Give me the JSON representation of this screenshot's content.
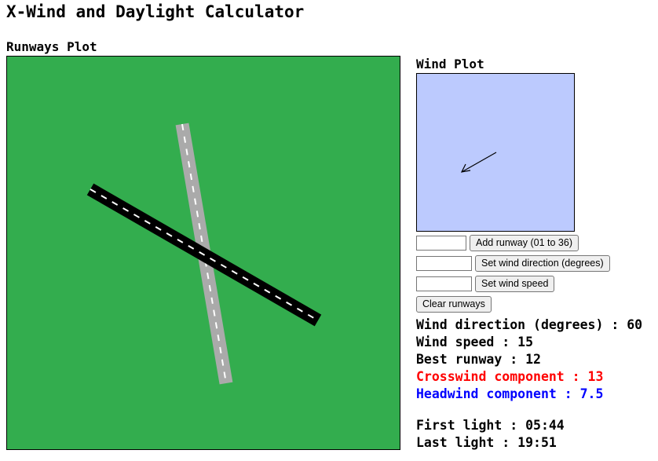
{
  "page": {
    "title": "X-Wind and Daylight Calculator"
  },
  "runways_plot": {
    "title": "Runways Plot",
    "background_color": "#33ad4e",
    "runways": [
      {
        "label": "12",
        "heading_deg": 120,
        "surface_color": "#000000",
        "centerline_color": "#ffffff"
      },
      {
        "label": "01 to 36 (near N-S, ~010/190)",
        "heading_deg": 10,
        "surface_color": "#aaaaaa",
        "centerline_color": "#ffffff"
      }
    ]
  },
  "wind_plot": {
    "title": "Wind Plot",
    "background_color": "#bccafe",
    "arrow_color": "#000000",
    "wind_direction_deg": 60
  },
  "controls": {
    "add_runway": {
      "value": "",
      "button_label": "Add runway (01 to 36)"
    },
    "set_direction": {
      "value": "",
      "button_label": "Set wind direction (degrees)"
    },
    "set_speed": {
      "value": "",
      "button_label": "Set wind speed"
    },
    "clear_label": "Clear runways"
  },
  "results": {
    "wind_direction": "Wind direction (degrees) : 60",
    "wind_speed": "Wind speed : 15",
    "best_runway": "Best runway : 12",
    "crosswind": "Crosswind component : 13",
    "headwind": "Headwind component : 7.5",
    "first_light": "First light : 05:44",
    "last_light": "Last light : 19:51"
  },
  "colors": {
    "crosswind_text": "#ff0000",
    "headwind_text": "#0000ff"
  }
}
